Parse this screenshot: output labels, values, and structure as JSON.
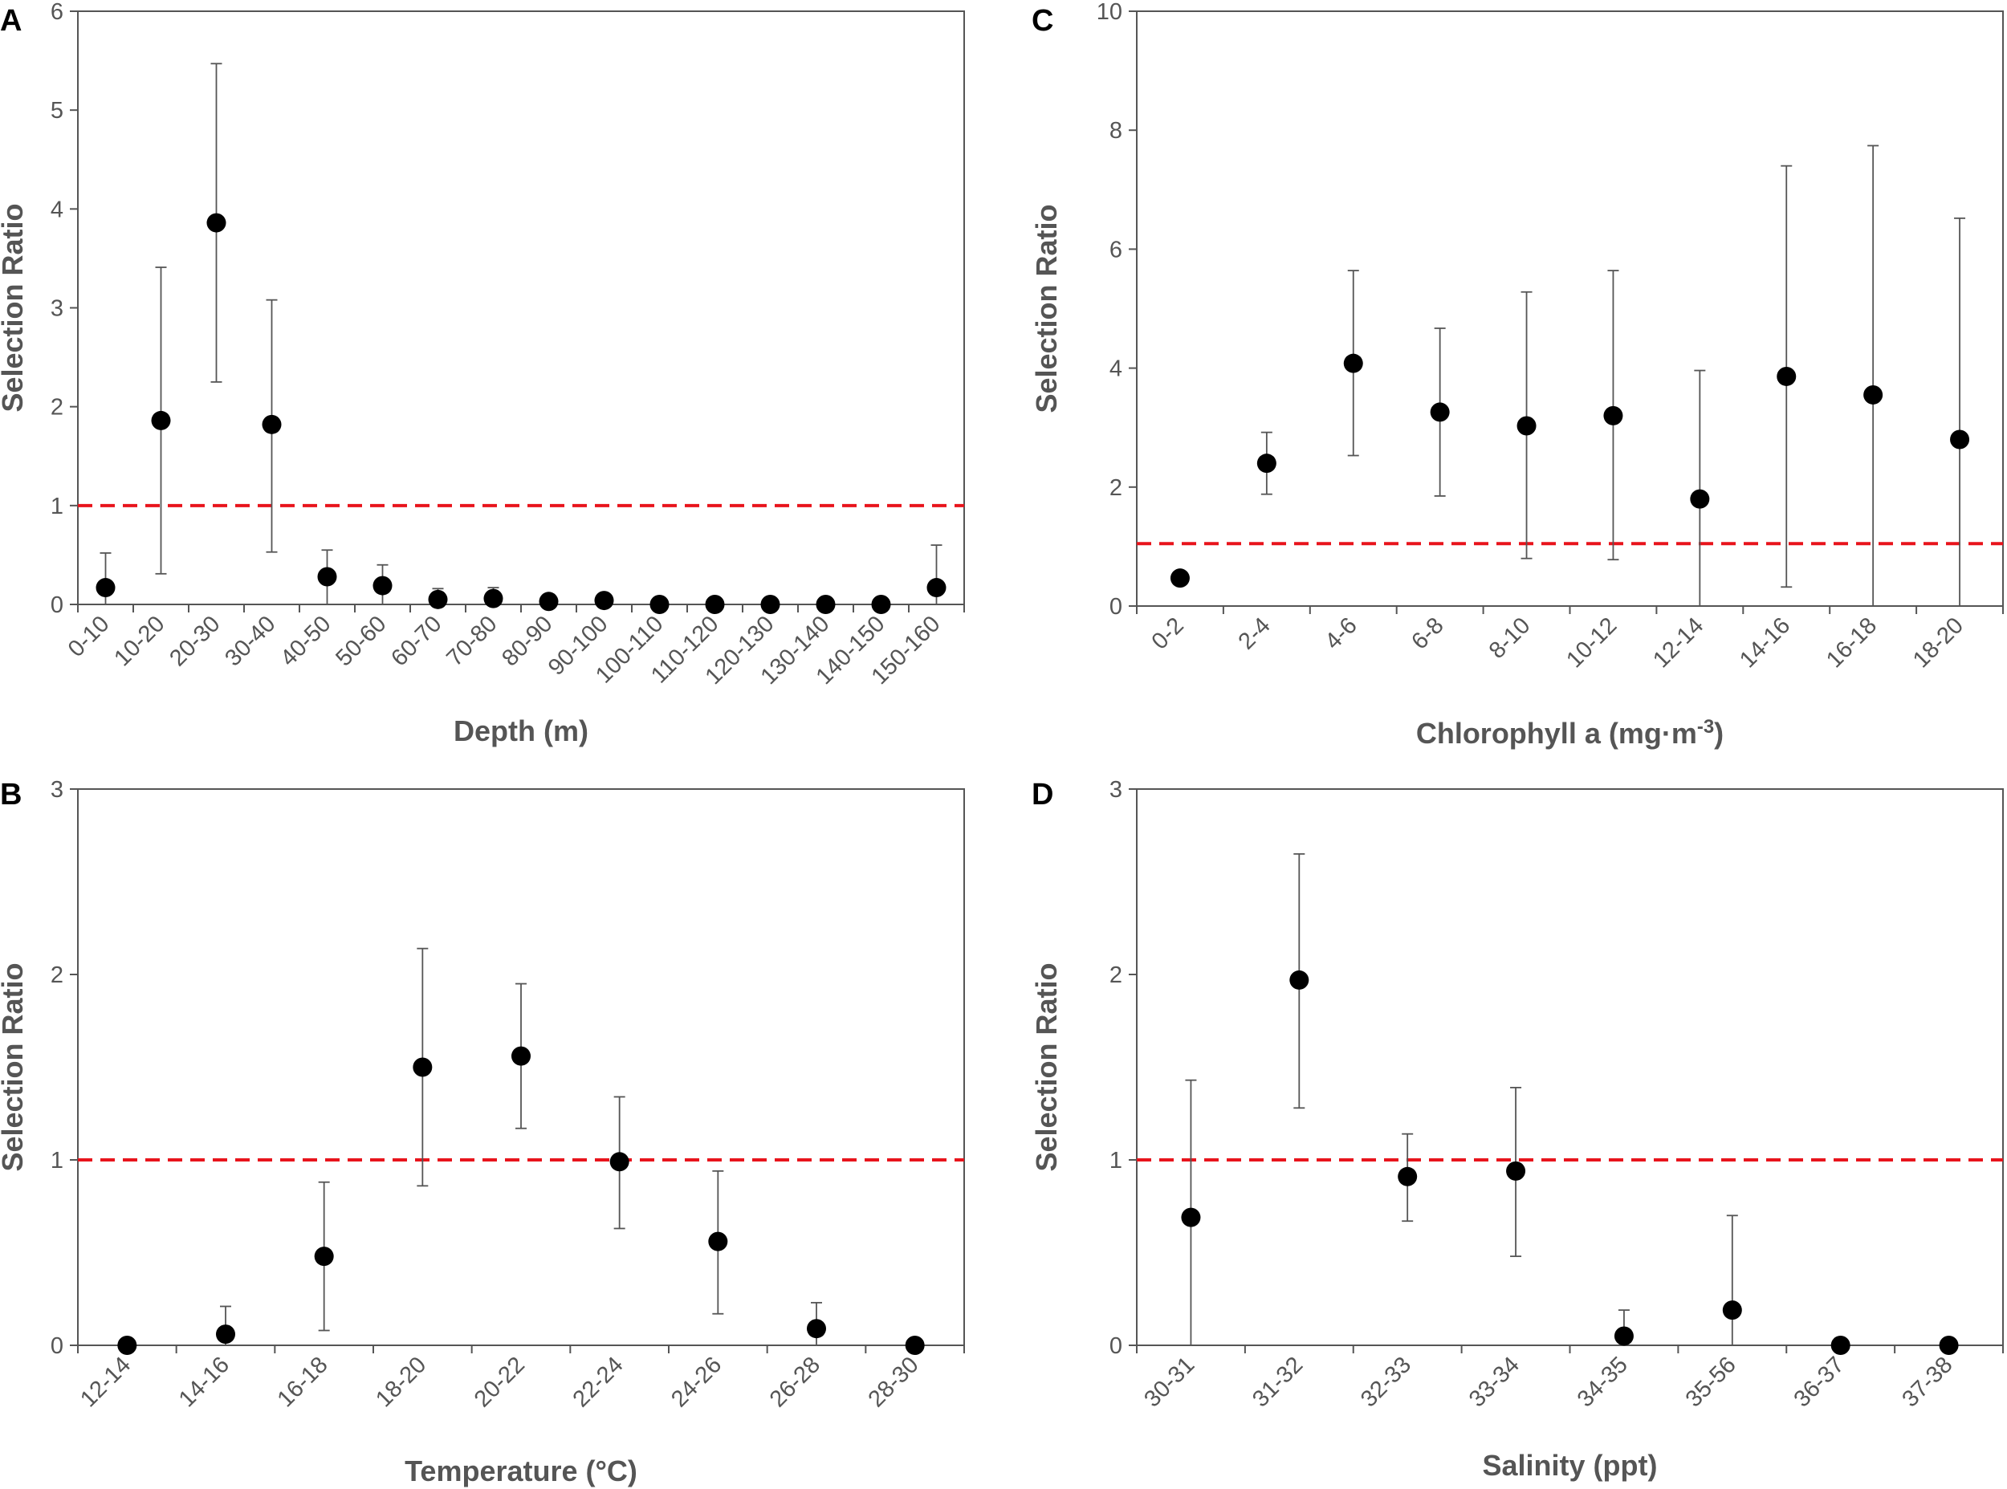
{
  "colors": {
    "marker": "#000000",
    "errorbar": "#555555",
    "axis": "#555555",
    "reference": "#e8141c"
  },
  "chart_data": [
    {
      "panel": "A",
      "type": "scatter",
      "xlabel": "Depth (m)",
      "ylabel": "Selection Ratio",
      "ylim": [
        0,
        6
      ],
      "yticks": [
        0,
        1,
        2,
        3,
        4,
        5,
        6
      ],
      "reference_line": 1.0,
      "categories": [
        "0-10",
        "10-20",
        "20-30",
        "30-40",
        "40-50",
        "50-60",
        "60-70",
        "70-80",
        "80-90",
        "90-100",
        "100-110",
        "110-120",
        "120-130",
        "130-140",
        "140-150",
        "150-160"
      ],
      "values": [
        0.17,
        1.86,
        3.86,
        1.82,
        0.28,
        0.19,
        0.05,
        0.06,
        0.03,
        0.04,
        0.0,
        0.0,
        0.0,
        0.0,
        0.0,
        0.17
      ],
      "lower": [
        0.0,
        0.31,
        2.25,
        0.53,
        0.0,
        0.0,
        0.0,
        0.0,
        null,
        null,
        null,
        null,
        null,
        null,
        null,
        0.0
      ],
      "upper": [
        0.52,
        3.41,
        5.47,
        3.08,
        0.55,
        0.4,
        0.16,
        0.17,
        null,
        null,
        null,
        null,
        null,
        null,
        null,
        0.6
      ]
    },
    {
      "panel": "C",
      "type": "scatter",
      "xlabel": "Chlorophyll a (mg·m",
      "xlabel_sup": "-3",
      "xlabel_end": ")",
      "ylabel": "Selection Ratio",
      "ylim": [
        0,
        10
      ],
      "yticks": [
        0,
        2,
        4,
        6,
        8,
        10
      ],
      "reference_line": 1.05,
      "categories": [
        "0-2",
        "2-4",
        "4-6",
        "6-8",
        "8-10",
        "10-12",
        "12-14",
        "14-16",
        "16-18",
        "18-20"
      ],
      "values": [
        0.47,
        2.4,
        4.08,
        3.26,
        3.03,
        3.2,
        1.8,
        3.86,
        3.55,
        2.8
      ],
      "lower": [
        null,
        1.88,
        2.53,
        1.85,
        0.8,
        0.78,
        0.0,
        0.32,
        0.0,
        0.0
      ],
      "upper": [
        null,
        2.92,
        5.64,
        4.67,
        5.28,
        5.64,
        3.96,
        7.4,
        7.74,
        6.52
      ]
    },
    {
      "panel": "B",
      "type": "scatter",
      "xlabel": "Temperature (°C)",
      "ylabel": "Selection Ratio",
      "ylim": [
        0,
        3
      ],
      "yticks": [
        0,
        1,
        2,
        3
      ],
      "reference_line": 1.0,
      "categories": [
        "12-14",
        "14-16",
        "16-18",
        "18-20",
        "20-22",
        "22-24",
        "24-26",
        "26-28",
        "28-30"
      ],
      "values": [
        0.0,
        0.06,
        0.48,
        1.5,
        1.56,
        0.99,
        0.56,
        0.09,
        0.0
      ],
      "lower": [
        null,
        0.0,
        0.08,
        0.86,
        1.17,
        0.63,
        0.17,
        0.0,
        null
      ],
      "upper": [
        null,
        0.21,
        0.88,
        2.14,
        1.95,
        1.34,
        0.94,
        0.23,
        null
      ]
    },
    {
      "panel": "D",
      "type": "scatter",
      "xlabel": "Salinity (ppt)",
      "ylabel": "Selection Ratio",
      "ylim": [
        0,
        3
      ],
      "yticks": [
        0,
        1,
        2,
        3
      ],
      "reference_line": 1.0,
      "categories": [
        "30-31",
        "31-32",
        "32-33",
        "33-34",
        "34-35",
        "35-56",
        "36-37",
        "37-38"
      ],
      "values": [
        0.69,
        1.97,
        0.91,
        0.94,
        0.05,
        0.19,
        0.0,
        0.0
      ],
      "lower": [
        0.0,
        1.28,
        0.67,
        0.48,
        0.0,
        0.0,
        null,
        null
      ],
      "upper": [
        1.43,
        2.65,
        1.14,
        1.39,
        0.19,
        0.7,
        null,
        null
      ]
    }
  ]
}
